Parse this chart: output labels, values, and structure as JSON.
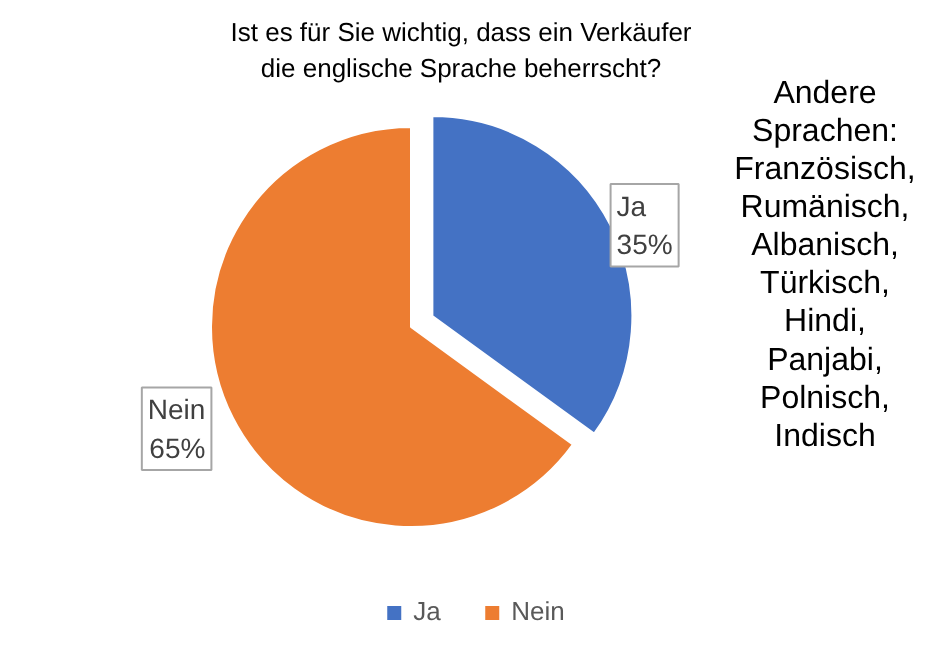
{
  "chart_data": {
    "type": "pie",
    "title": "Ist es für Sie wichtig, dass ein Verkäufer\ndie englische Sprache beherrscht?",
    "categories": [
      "Ja",
      "Nein"
    ],
    "values": [
      35,
      65
    ],
    "colors": [
      "#4472c4",
      "#ed7d31"
    ],
    "value_labels": [
      "35%",
      "65%"
    ],
    "legend": "bottom",
    "annotations": [
      "Andere\nSprachen:\nFranzösisch,\nRumänisch,\nAlbanisch,\nTürkisch,\nHindi,\nPanjabi,\nPolnisch,\nIndisch"
    ]
  }
}
